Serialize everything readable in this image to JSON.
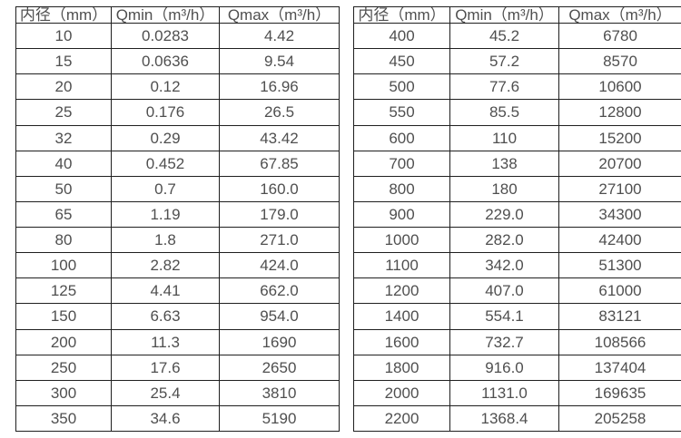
{
  "colors": {
    "border": "#1f1f1f",
    "text": "#4f4f4f",
    "background": "#ffffff"
  },
  "chart_data": [
    {
      "type": "table",
      "name": "flow-rate-table-small-diameters",
      "columns": [
        "内径（mm）",
        "Qmin（m³/h）",
        "Qmax（m³/h）"
      ],
      "rows": [
        [
          "10",
          "0.0283",
          "4.42"
        ],
        [
          "15",
          "0.0636",
          "9.54"
        ],
        [
          "20",
          "0.12",
          "16.96"
        ],
        [
          "25",
          "0.176",
          "26.5"
        ],
        [
          "32",
          "0.29",
          "43.42"
        ],
        [
          "40",
          "0.452",
          "67.85"
        ],
        [
          "50",
          "0.7",
          "160.0"
        ],
        [
          "65",
          "1.19",
          "179.0"
        ],
        [
          "80",
          "1.8",
          "271.0"
        ],
        [
          "100",
          "2.82",
          "424.0"
        ],
        [
          "125",
          "4.41",
          "662.0"
        ],
        [
          "150",
          "6.63",
          "954.0"
        ],
        [
          "200",
          "11.3",
          "1690"
        ],
        [
          "250",
          "17.6",
          "2650"
        ],
        [
          "300",
          "25.4",
          "3810"
        ],
        [
          "350",
          "34.6",
          "5190"
        ]
      ]
    },
    {
      "type": "table",
      "name": "flow-rate-table-large-diameters",
      "columns": [
        "内径（mm）",
        "Qmin（m³/h）",
        "Qmax（m³/h）"
      ],
      "rows": [
        [
          "400",
          "45.2",
          "6780"
        ],
        [
          "450",
          "57.2",
          "8570"
        ],
        [
          "500",
          "77.6",
          "10600"
        ],
        [
          "550",
          "85.5",
          "12800"
        ],
        [
          "600",
          "110",
          "15200"
        ],
        [
          "700",
          "138",
          "20700"
        ],
        [
          "800",
          "180",
          "27100"
        ],
        [
          "900",
          "229.0",
          "34300"
        ],
        [
          "1000",
          "282.0",
          "42400"
        ],
        [
          "1100",
          "342.0",
          "51300"
        ],
        [
          "1200",
          "407.0",
          "61000"
        ],
        [
          "1400",
          "554.1",
          "83121"
        ],
        [
          "1600",
          "732.7",
          "108566"
        ],
        [
          "1800",
          "916.0",
          "137404"
        ],
        [
          "2000",
          "1131.0",
          "169635"
        ],
        [
          "2200",
          "1368.4",
          "205258"
        ]
      ]
    }
  ]
}
